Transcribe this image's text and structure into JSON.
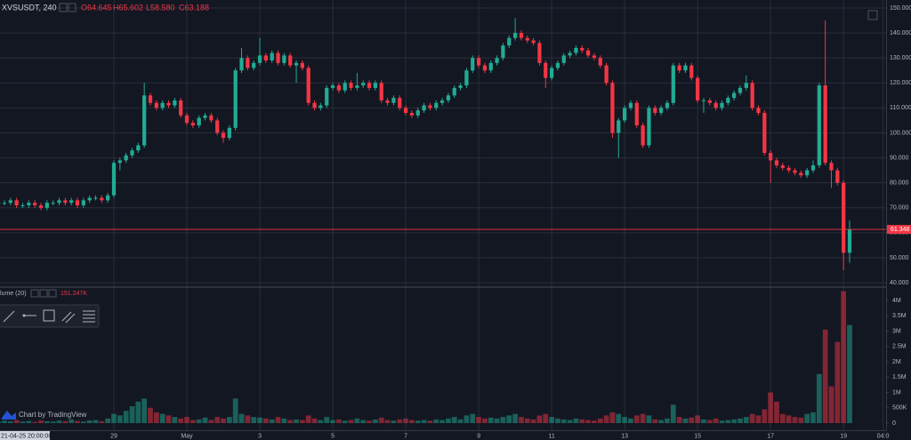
{
  "header": {
    "symbol": "XVSUSDT, 240",
    "open": "O64.645",
    "high": "H65.602",
    "low": "L58.580",
    "close": "C63.188"
  },
  "volume_legend": {
    "title": "lume (20)",
    "value": "151.247K"
  },
  "watermark": "Chart by TradingView",
  "crosshair_time": "21-04-25 20:00:00",
  "chart_data": [
    {
      "type": "candlestick",
      "open": [
        71.5,
        72,
        72,
        73,
        71,
        71,
        72,
        71,
        70,
        72,
        72,
        73,
        72,
        73,
        71,
        73,
        74,
        74,
        73,
        75,
        88,
        89,
        91,
        93,
        95,
        115,
        112,
        110,
        112,
        111,
        113,
        107,
        104,
        103,
        106,
        107,
        105,
        100,
        98,
        102,
        125,
        130,
        126,
        128,
        131,
        129,
        132,
        128,
        131,
        127,
        128,
        126,
        112,
        110,
        111,
        118,
        119,
        117,
        120,
        118,
        119,
        120,
        118,
        120,
        113,
        112,
        114,
        110,
        108,
        107,
        109,
        111,
        110,
        112,
        113,
        115,
        118,
        119,
        125,
        130,
        127,
        125,
        128,
        130,
        135,
        138,
        140,
        138,
        137,
        136,
        128,
        122,
        126,
        128,
        131,
        132,
        134,
        133,
        131,
        130,
        127,
        120,
        100,
        105,
        110,
        112,
        103,
        95,
        110,
        108,
        110,
        112,
        127,
        125,
        127,
        122,
        113,
        113,
        112,
        110,
        112,
        114,
        116,
        118,
        120,
        110,
        108,
        92,
        89,
        87,
        86,
        85,
        84,
        83,
        85,
        87,
        119,
        88,
        85,
        80,
        52
      ],
      "high": [
        73,
        73,
        74,
        74,
        72,
        73,
        73,
        72,
        73,
        73,
        74,
        74,
        74,
        74,
        74,
        75,
        75,
        75,
        76,
        89,
        90,
        92,
        94,
        96,
        120,
        116,
        113,
        113,
        113,
        114,
        114,
        108,
        105,
        107,
        108,
        108,
        106,
        101,
        103,
        126,
        134,
        131,
        129,
        138,
        132,
        133,
        133,
        132,
        132,
        129,
        129,
        127,
        113,
        112,
        119,
        120,
        120,
        121,
        121,
        124,
        121,
        121,
        121,
        121,
        114,
        115,
        115,
        111,
        109,
        110,
        112,
        112,
        113,
        114,
        116,
        119,
        120,
        126,
        131,
        131,
        128,
        129,
        131,
        136,
        139,
        146,
        141,
        139,
        138,
        137,
        129,
        127,
        129,
        132,
        133,
        135,
        135,
        134,
        132,
        131,
        128,
        121,
        106,
        111,
        113,
        113,
        104,
        111,
        111,
        111,
        113,
        128,
        128,
        128,
        128,
        123,
        114,
        114,
        113,
        113,
        115,
        117,
        119,
        123,
        121,
        111,
        109,
        93,
        90,
        88,
        87,
        86,
        85,
        86,
        89,
        120,
        145,
        89,
        86,
        81,
        65
      ],
      "low": [
        70.5,
        71,
        71,
        70,
        70,
        70,
        70,
        69,
        69,
        71,
        71,
        71,
        71,
        70,
        70,
        72,
        73,
        72,
        72,
        74,
        85,
        88,
        90,
        92,
        94,
        111,
        109,
        109,
        110,
        110,
        106,
        103,
        102,
        102,
        105,
        104,
        99,
        96,
        97,
        101,
        124,
        125,
        125,
        127,
        128,
        128,
        127,
        127,
        126,
        120,
        125,
        111,
        109,
        109,
        110,
        117,
        116,
        116,
        117,
        117,
        118,
        117,
        117,
        112,
        111,
        111,
        109,
        107,
        106,
        106,
        108,
        109,
        109,
        111,
        112,
        114,
        117,
        118,
        124,
        126,
        124,
        124,
        127,
        129,
        134,
        137,
        137,
        136,
        135,
        127,
        118,
        121,
        125,
        127,
        130,
        131,
        132,
        130,
        129,
        126,
        119,
        98,
        90,
        104,
        109,
        102,
        94,
        94,
        107,
        107,
        109,
        111,
        124,
        124,
        121,
        112,
        108,
        111,
        109,
        109,
        111,
        113,
        115,
        117,
        109,
        107,
        91,
        80,
        86,
        85,
        84,
        83,
        82,
        82,
        84,
        86,
        87,
        78,
        79,
        45,
        48
      ],
      "close": [
        72,
        72,
        73,
        71,
        71,
        72,
        71,
        70,
        72,
        72,
        73,
        72,
        73,
        71,
        73,
        74,
        74,
        73,
        75,
        88,
        89,
        91,
        93,
        95,
        115,
        112,
        110,
        112,
        111,
        113,
        107,
        104,
        103,
        106,
        107,
        105,
        100,
        98,
        102,
        125,
        130,
        126,
        128,
        131,
        129,
        132,
        128,
        131,
        127,
        128,
        126,
        112,
        110,
        111,
        118,
        119,
        117,
        120,
        118,
        119,
        120,
        118,
        120,
        113,
        112,
        114,
        110,
        108,
        107,
        109,
        111,
        110,
        112,
        113,
        115,
        118,
        119,
        125,
        130,
        127,
        125,
        128,
        130,
        135,
        138,
        140,
        138,
        137,
        136,
        128,
        122,
        126,
        128,
        131,
        132,
        134,
        133,
        131,
        130,
        127,
        120,
        100,
        105,
        110,
        112,
        103,
        95,
        110,
        108,
        110,
        112,
        127,
        125,
        127,
        122,
        113,
        113,
        112,
        110,
        112,
        114,
        116,
        118,
        120,
        110,
        108,
        92,
        89,
        87,
        86,
        85,
        84,
        83,
        85,
        87,
        119,
        88,
        85,
        80,
        52,
        61.348
      ],
      "up_color": "#22ab94",
      "down_color": "#f23645",
      "price_line_color": "#f23645",
      "xlim": [
        0.27,
        146
      ],
      "xticks": [
        {
          "value": 19,
          "label": "29"
        },
        {
          "value": 31,
          "label": "May"
        },
        {
          "value": 43,
          "label": "3"
        },
        {
          "value": 55,
          "label": "5"
        },
        {
          "value": 67,
          "label": "7"
        },
        {
          "value": 79,
          "label": "9"
        },
        {
          "value": 91,
          "label": "11"
        },
        {
          "value": 103,
          "label": "13"
        },
        {
          "value": 115,
          "label": "15"
        },
        {
          "value": 127,
          "label": "17"
        },
        {
          "value": 139,
          "label": "19"
        },
        {
          "value": 145.5,
          "label": "04:0"
        }
      ],
      "ylim": [
        38.6,
        153.2
      ],
      "yticks": [
        {
          "value": 40,
          "label": "40.000"
        },
        {
          "value": 50,
          "label": "50.000"
        },
        {
          "value": 60,
          "label": "60.000"
        },
        {
          "value": 70,
          "label": "70.000"
        },
        {
          "value": 80,
          "label": "80.000"
        },
        {
          "value": 90,
          "label": "90.000"
        },
        {
          "value": 100,
          "label": "100.000"
        },
        {
          "value": 110,
          "label": "110.000"
        },
        {
          "value": 120,
          "label": "120.000"
        },
        {
          "value": 130,
          "label": "130.000"
        },
        {
          "value": 140,
          "label": "140.000"
        },
        {
          "value": 150,
          "label": "150.000"
        }
      ],
      "grid": true
    },
    {
      "type": "bar",
      "values": [
        0.05,
        0.08,
        0.06,
        0.1,
        0.05,
        0.07,
        0.04,
        0.09,
        0.06,
        0.05,
        0.08,
        0.06,
        0.12,
        0.07,
        0.05,
        0.09,
        0.1,
        0.06,
        0.15,
        0.3,
        0.25,
        0.4,
        0.55,
        0.7,
        0.8,
        0.5,
        0.35,
        0.3,
        0.25,
        0.2,
        0.15,
        0.2,
        0.1,
        0.12,
        0.18,
        0.1,
        0.2,
        0.15,
        0.2,
        0.8,
        0.3,
        0.25,
        0.2,
        0.18,
        0.15,
        0.12,
        0.2,
        0.15,
        0.1,
        0.12,
        0.1,
        0.25,
        0.15,
        0.1,
        0.2,
        0.1,
        0.12,
        0.08,
        0.1,
        0.15,
        0.1,
        0.08,
        0.12,
        0.18,
        0.1,
        0.08,
        0.12,
        0.15,
        0.1,
        0.08,
        0.1,
        0.08,
        0.12,
        0.1,
        0.15,
        0.2,
        0.12,
        0.25,
        0.3,
        0.2,
        0.15,
        0.18,
        0.15,
        0.2,
        0.25,
        0.3,
        0.2,
        0.15,
        0.12,
        0.25,
        0.3,
        0.2,
        0.15,
        0.12,
        0.1,
        0.15,
        0.12,
        0.1,
        0.08,
        0.15,
        0.25,
        0.35,
        0.3,
        0.2,
        0.15,
        0.25,
        0.3,
        0.25,
        0.12,
        0.1,
        0.15,
        0.6,
        0.2,
        0.15,
        0.18,
        0.25,
        0.12,
        0.1,
        0.15,
        0.08,
        0.1,
        0.12,
        0.15,
        0.2,
        0.3,
        0.25,
        0.45,
        1.0,
        0.7,
        0.3,
        0.25,
        0.2,
        0.18,
        0.3,
        0.35,
        1.6,
        3.05,
        1.2,
        2.65,
        4.3,
        3.2
      ],
      "up_color": "rgba(34,171,148,0.5)",
      "down_color": "rgba(242,54,69,0.5)",
      "ylim": [
        -0.232,
        4.406
      ],
      "yticks": [
        0,
        {
          "value": 0.5,
          "label": "500K"
        },
        {
          "value": 1,
          "label": "1M"
        },
        {
          "value": 1.5,
          "label": "1.5M"
        },
        {
          "value": 2,
          "label": "2M"
        },
        {
          "value": 2.5,
          "label": "2.5M"
        },
        {
          "value": 3,
          "label": "3M"
        },
        {
          "value": 3.5,
          "label": "3.5M"
        },
        {
          "value": 4,
          "label": "4M"
        }
      ]
    }
  ]
}
